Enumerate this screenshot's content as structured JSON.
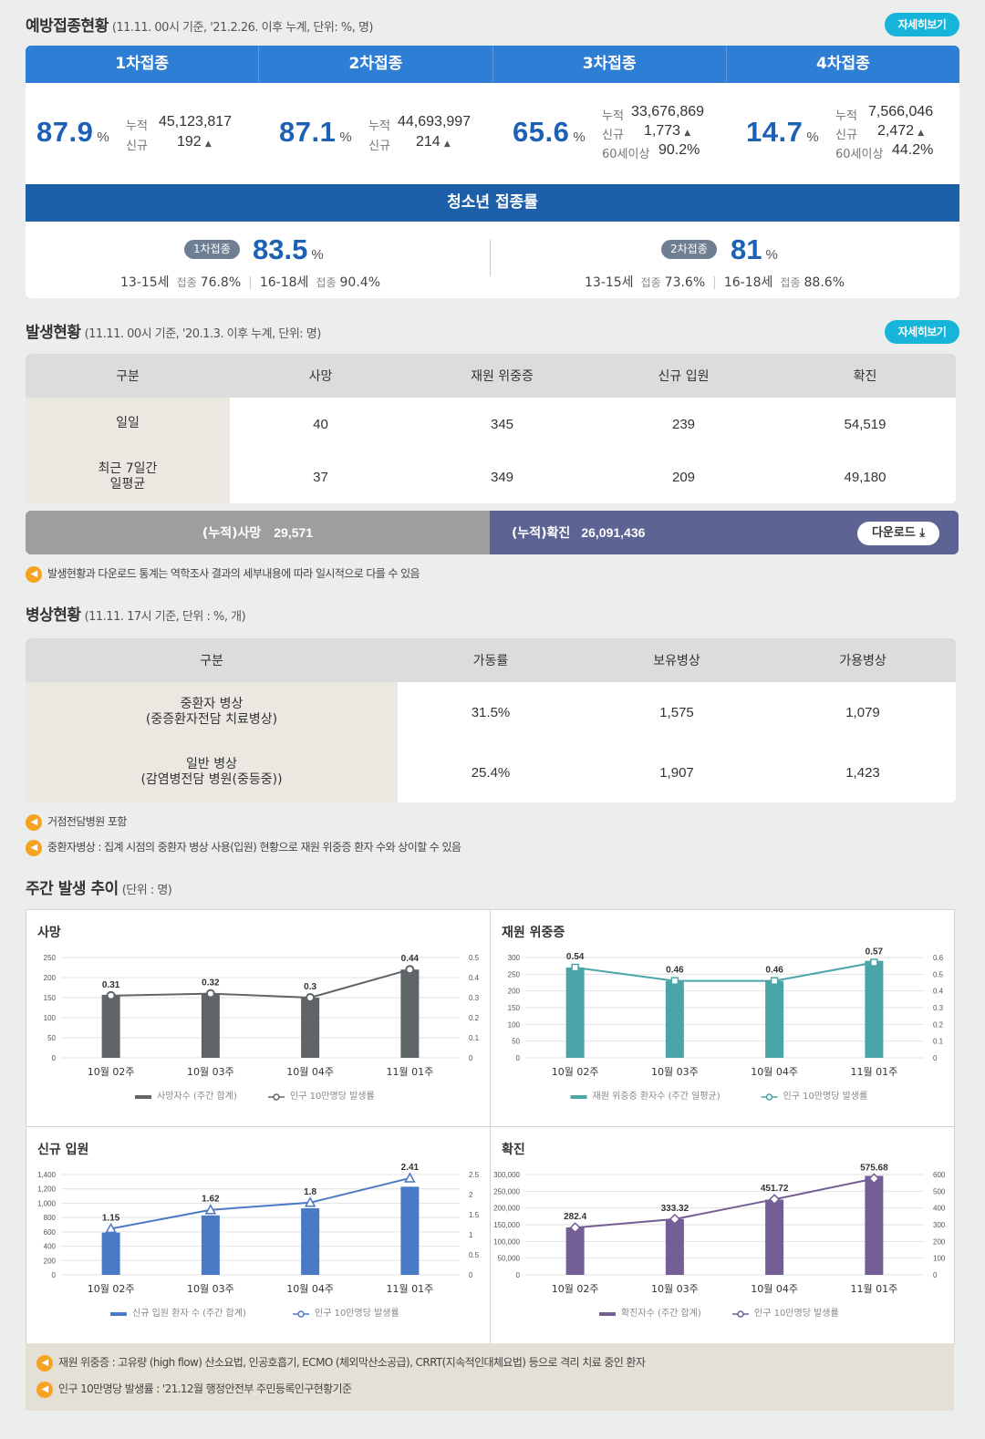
{
  "vaccination": {
    "title": "예방접종현황",
    "subtitle": "(11.11. 00시 기준, '21.2.26. 이후 누계, 단위: %, 명)",
    "more": "자세히보기",
    "doses": [
      {
        "label": "1차접종",
        "pct": "87.9",
        "unit": "%",
        "rows": [
          {
            "k": "누적",
            "v": "45,123,817"
          },
          {
            "k": "신규",
            "v": "192"
          }
        ]
      },
      {
        "label": "2차접종",
        "pct": "87.1",
        "unit": "%",
        "rows": [
          {
            "k": "누적",
            "v": "44,693,997"
          },
          {
            "k": "신규",
            "v": "214"
          }
        ]
      },
      {
        "label": "3차접종",
        "pct": "65.6",
        "unit": "%",
        "rows": [
          {
            "k": "누적",
            "v": "33,676,869"
          },
          {
            "k": "신규",
            "v": "1,773"
          },
          {
            "k": "60세이상",
            "v": "90.2%"
          }
        ]
      },
      {
        "label": "4차접종",
        "pct": "14.7",
        "unit": "%",
        "rows": [
          {
            "k": "누적",
            "v": "7,566,046"
          },
          {
            "k": "신규",
            "v": "2,472"
          },
          {
            "k": "60세이상",
            "v": "44.2%"
          }
        ]
      }
    ],
    "youth": {
      "title": "청소년 접종률",
      "groups": [
        {
          "label": "1차접종",
          "pct": "83.5",
          "unit": "%",
          "a_age": "13-15세",
          "a_lbl": "접종",
          "a_val": "76.8%",
          "b_age": "16-18세",
          "b_lbl": "접종",
          "b_val": "90.4%"
        },
        {
          "label": "2차접종",
          "pct": "81",
          "unit": "%",
          "a_age": "13-15세",
          "a_lbl": "접종",
          "a_val": "73.6%",
          "b_age": "16-18세",
          "b_lbl": "접종",
          "b_val": "88.6%"
        }
      ]
    }
  },
  "occurrence": {
    "title": "발생현황",
    "subtitle": "(11.11. 00시 기준, '20.1.3. 이후 누계, 단위: 명)",
    "more": "자세히보기",
    "headers": [
      "구분",
      "사망",
      "재원 위중증",
      "신규 입원",
      "확진"
    ],
    "rows": [
      {
        "label": "일일",
        "values": [
          "40",
          "345",
          "239",
          "54,519"
        ]
      },
      {
        "label": "최근 7일간\n일평균",
        "values": [
          "37",
          "349",
          "209",
          "49,180"
        ]
      }
    ],
    "cum_death_label": "(누적)사망",
    "cum_death": "29,571",
    "cum_conf_label": "(누적)확진",
    "cum_conf": "26,091,436",
    "download": "다운로드",
    "notice": "발생현황과 다운로드 통계는 역학조사 결과의 세부내용에 따라 일시적으로 다를 수 있음"
  },
  "beds": {
    "title": "병상현황",
    "subtitle": "(11.11. 17시 기준, 단위 : %, 개)",
    "headers": [
      "구분",
      "가동률",
      "보유병상",
      "가용병상"
    ],
    "rows": [
      {
        "label": "중환자 병상\n(중증환자전담 치료병상)",
        "values": [
          "31.5%",
          "1,575",
          "1,079"
        ]
      },
      {
        "label": "일반 병상\n(감염병전담 병원(중등중))",
        "values": [
          "25.4%",
          "1,907",
          "1,423"
        ]
      }
    ],
    "notices": [
      "거점전담병원 포함",
      "중환자병상 : 집계 시점의 중환자 병상 사용(입원) 현황으로 재원 위중증 환자 수와 상이할 수 있음"
    ]
  },
  "weekly": {
    "title": "주간 발생 추이",
    "subtitle": "(단위 : 명)"
  },
  "chart_data": [
    {
      "type": "bar",
      "title": "사망",
      "categories": [
        "10월 02주",
        "10월 03주",
        "10월 04주",
        "11월 01주"
      ],
      "series": [
        {
          "name": "사망자수 (주간 합계)",
          "values": [
            157,
            160,
            150,
            220
          ]
        },
        {
          "name": "인구 10만명당 발생률",
          "type": "line",
          "axis": "right",
          "values": [
            0.31,
            0.32,
            0.3,
            0.44
          ]
        }
      ],
      "ylim": [
        0,
        250
      ],
      "yticks": [
        0,
        50,
        100,
        150,
        200,
        250
      ],
      "y2lim": [
        0,
        0.5
      ],
      "y2ticks": [
        "0",
        "0.1",
        "0.2",
        "0.3",
        "0.4",
        "0.5"
      ],
      "color": "#5f6567",
      "marker": "circle"
    },
    {
      "type": "bar",
      "title": "재원 위중증",
      "categories": [
        "10월 02주",
        "10월 03주",
        "10월 04주",
        "11월 01주"
      ],
      "series": [
        {
          "name": "재원 위중증 환자수 (주간 일평균)",
          "values": [
            270,
            230,
            230,
            290
          ]
        },
        {
          "name": "인구 10만명당 발생률",
          "type": "line",
          "axis": "right",
          "values": [
            0.54,
            0.46,
            0.46,
            0.57
          ]
        }
      ],
      "ylim": [
        0,
        300
      ],
      "yticks": [
        0,
        50,
        100,
        150,
        200,
        250,
        300
      ],
      "y2lim": [
        0,
        0.6
      ],
      "y2ticks": [
        "0",
        "0.1",
        "0.2",
        "0.3",
        "0.4",
        "0.5",
        "0.6"
      ],
      "color": "#4aa5a8",
      "marker": "square"
    },
    {
      "type": "bar",
      "title": "신규 입원",
      "categories": [
        "10월 02주",
        "10월 03주",
        "10월 04주",
        "11월 01주"
      ],
      "series": [
        {
          "name": "신규 입원 환자 수 (주간 합계)",
          "values": [
            590,
            830,
            930,
            1230
          ]
        },
        {
          "name": "인구 10만명당 발생률",
          "type": "line",
          "axis": "right",
          "values": [
            1.15,
            1.62,
            1.8,
            2.41
          ]
        }
      ],
      "ylim": [
        0,
        1400
      ],
      "yticks": [
        0,
        200,
        400,
        600,
        800,
        1000,
        1200,
        1400
      ],
      "y2lim": [
        0,
        2.5
      ],
      "y2ticks": [
        "0",
        "0.5",
        "1",
        "1.5",
        "2",
        "2.5"
      ],
      "color": "#4a79c5",
      "marker": "triangle"
    },
    {
      "type": "bar",
      "title": "확진",
      "categories": [
        "10월 02주",
        "10월 03주",
        "10월 04주",
        "11월 01주"
      ],
      "series": [
        {
          "name": "확진자수 (주간 합계)",
          "values": [
            142000,
            167000,
            225000,
            296000
          ]
        },
        {
          "name": "인구 10만명당 발생률",
          "type": "line",
          "axis": "right",
          "values": [
            282.4,
            333.32,
            451.72,
            575.68
          ]
        }
      ],
      "ylim": [
        0,
        300000
      ],
      "yticks": [
        0,
        50000,
        100000,
        150000,
        200000,
        250000,
        300000
      ],
      "y2lim": [
        0,
        600
      ],
      "y2ticks": [
        "0",
        "100",
        "200",
        "300",
        "400",
        "500",
        "600"
      ],
      "color": "#735e96",
      "marker": "diamond"
    }
  ],
  "footnotes": [
    "재원 위중증 : 고유량 (high flow) 산소요법, 인공호흡기, ECMO (체외막산소공급), CRRT(지속적인대체요법) 등으로 격리 치료 중인 환자",
    "인구 10만명당 발생률 : '21.12월 행정안전부 주민등록인구현황기준"
  ]
}
